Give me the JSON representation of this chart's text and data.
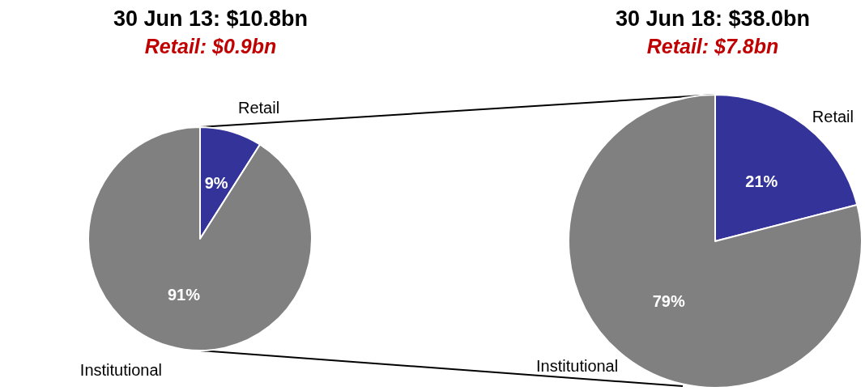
{
  "chart_data": [
    {
      "type": "pie",
      "title": "30 Jun 13: $10.8bn",
      "subtitle": "Retail: $0.9bn",
      "categories": [
        "Retail",
        "Institutional"
      ],
      "values": [
        9,
        91
      ],
      "colors": [
        "#333399",
        "#808080"
      ],
      "value_labels": [
        "9%",
        "91%"
      ],
      "legend": false
    },
    {
      "type": "pie",
      "title": "30 Jun 18: $38.0bn",
      "subtitle": "Retail: $7.8bn",
      "categories": [
        "Retail",
        "Institutional"
      ],
      "values": [
        21,
        79
      ],
      "colors": [
        "#333399",
        "#808080"
      ],
      "value_labels": [
        "21%",
        "79%"
      ],
      "legend": false
    }
  ]
}
